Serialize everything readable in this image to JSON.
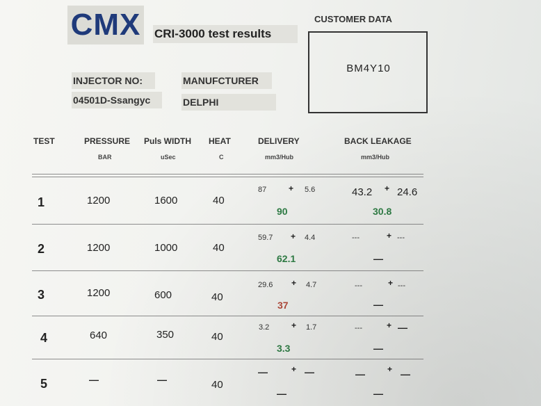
{
  "brand": "CMX",
  "report_title": "CRI-3000 test results",
  "customer": {
    "label": "CUSTOMER DATA",
    "value": "BM4Y10"
  },
  "injector": {
    "label": "INJECTOR NO:",
    "value": "04501D-Ssangyc"
  },
  "manufacturer": {
    "label": "MANUFCTURER",
    "value": "DELPHI"
  },
  "headers": {
    "test": "TEST",
    "pressure": "PRESSURE",
    "pressure_unit": "BAR",
    "puls": "Puls WIDTH",
    "puls_unit": "uSec",
    "heat": "HEAT",
    "heat_unit": "C",
    "delivery": "DELIVERY",
    "delivery_unit": "mm3/Hub",
    "back": "BACK LEAKAGE",
    "back_unit": "mm3/Hub"
  },
  "pm_symbol": "+",
  "rows": [
    {
      "test": "1",
      "pressure": "1200",
      "puls": "1600",
      "heat": "40",
      "del_nom": "87",
      "del_tol": "5.6",
      "del_meas": "90",
      "del_status": "ok",
      "back_nom": "43.2",
      "back_tol": "24.6",
      "back_meas": "30.8",
      "back_status": "ok"
    },
    {
      "test": "2",
      "pressure": "1200",
      "puls": "1000",
      "heat": "40",
      "del_nom": "59.7",
      "del_tol": "4.4",
      "del_meas": "62.1",
      "del_status": "ok",
      "back_nom": "---",
      "back_tol": "---",
      "back_meas": "—",
      "back_status": "none"
    },
    {
      "test": "3",
      "pressure": "1200",
      "puls": "600",
      "heat": "40",
      "del_nom": "29.6",
      "del_tol": "4.7",
      "del_meas": "37",
      "del_status": "fail",
      "back_nom": "---",
      "back_tol": "---",
      "back_meas": "—",
      "back_status": "none"
    },
    {
      "test": "4",
      "pressure": "640",
      "puls": "350",
      "heat": "40",
      "del_nom": "3.2",
      "del_tol": "1.7",
      "del_meas": "3.3",
      "del_status": "ok",
      "back_nom": "---",
      "back_tol": "—",
      "back_meas": "—",
      "back_status": "none"
    },
    {
      "test": "5",
      "pressure": "—",
      "puls": "—",
      "heat": "40",
      "del_nom": "—",
      "del_tol": "—",
      "del_meas": "—",
      "del_status": "none",
      "back_nom": "—",
      "back_tol": "—",
      "back_meas": "—",
      "back_status": "none"
    }
  ],
  "colors": {
    "brand": "#1f3a7a",
    "ok": "#2f7d45",
    "fail": "#b24a3a"
  }
}
